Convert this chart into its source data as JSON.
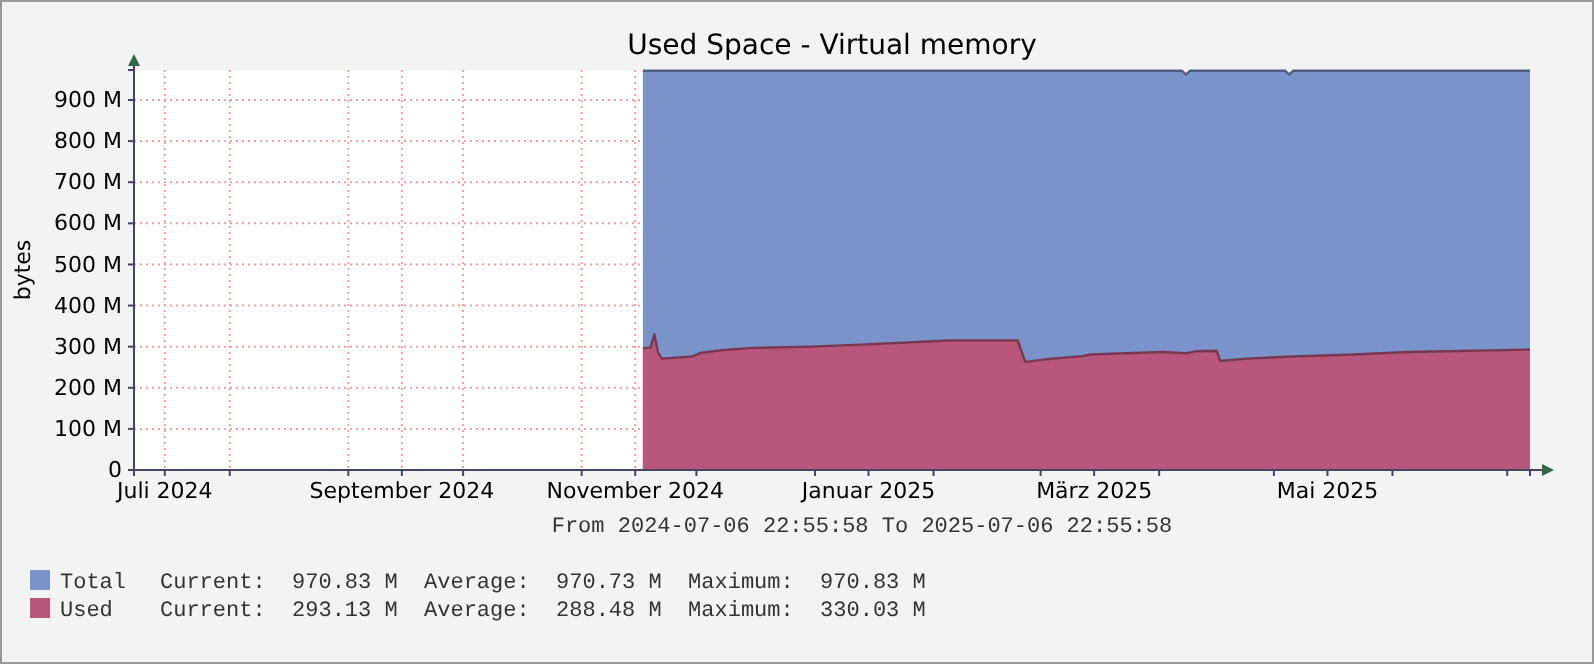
{
  "chart_data": {
    "type": "area",
    "title": "Used Space - Virtual memory",
    "ylabel": "bytes",
    "xlim": [
      "2024-07-06T22:55",
      "2025-07-06T22:55"
    ],
    "xticks": [
      {
        "value": "2024-07-15",
        "label": "Juli 2024"
      },
      {
        "value": "2024-08-01",
        "label": null
      },
      {
        "value": "2024-09-01",
        "label": null
      },
      {
        "value": "2024-09-15",
        "label": "September 2024"
      },
      {
        "value": "2024-10-01",
        "label": null
      },
      {
        "value": "2024-11-01",
        "label": null
      },
      {
        "value": "2024-11-15",
        "label": "November 2024"
      },
      {
        "value": "2024-12-01",
        "label": null
      },
      {
        "value": "2025-01-01",
        "label": null
      },
      {
        "value": "2025-01-15",
        "label": "Januar 2025"
      },
      {
        "value": "2025-02-01",
        "label": null
      },
      {
        "value": "2025-03-01",
        "label": null
      },
      {
        "value": "2025-03-15",
        "label": "März 2025"
      },
      {
        "value": "2025-04-01",
        "label": null
      },
      {
        "value": "2025-05-01",
        "label": null
      },
      {
        "value": "2025-05-15",
        "label": "Mai 2025"
      },
      {
        "value": "2025-06-01",
        "label": null
      },
      {
        "value": "2025-07-01",
        "label": null
      }
    ],
    "ylim": [
      0,
      973
    ],
    "yticks": [
      0,
      {
        "value": 100,
        "label": "100 M"
      },
      {
        "value": 200,
        "label": "200 M"
      },
      {
        "value": 300,
        "label": "300 M"
      },
      {
        "value": 400,
        "label": "400 M"
      },
      {
        "value": 500,
        "label": "500 M"
      },
      {
        "value": 600,
        "label": "600 M"
      },
      {
        "value": 700,
        "label": "700 M"
      },
      {
        "value": 800,
        "label": "800 M"
      },
      {
        "value": 900,
        "label": "900 M"
      }
    ],
    "grid": true,
    "legend": "bottom",
    "series": [
      {
        "name": "Total",
        "color": "#7b93cb",
        "x": [
          "2024-11-17",
          "2025-04-07",
          "2025-04-08",
          "2025-04-09",
          "2025-05-04",
          "2025-05-05",
          "2025-05-06",
          "2025-07-06T22:55"
        ],
        "values": [
          971,
          971,
          962,
          971,
          971,
          962,
          971,
          971
        ]
      },
      {
        "name": "Used",
        "color": "#b8577b",
        "x": [
          "2024-11-17",
          "2024-11-19",
          "2024-11-20",
          "2024-11-21",
          "2024-11-22",
          "2024-11-30",
          "2024-12-02",
          "2024-12-08",
          "2024-12-16",
          "2024-12-31",
          "2025-01-13",
          "2025-01-25",
          "2025-02-05",
          "2025-02-23",
          "2025-02-25",
          "2025-03-04",
          "2025-03-12",
          "2025-03-14",
          "2025-04-02",
          "2025-04-08",
          "2025-04-11",
          "2025-04-16",
          "2025-04-17",
          "2025-04-24",
          "2025-05-06",
          "2025-05-22",
          "2025-06-05",
          "2025-06-22",
          "2025-07-06T22:55"
        ],
        "values": [
          297,
          297,
          330,
          285,
          271,
          276,
          285,
          292,
          297,
          300,
          305,
          310,
          315,
          315,
          263,
          271,
          277,
          281,
          287,
          284,
          289,
          290,
          265,
          271,
          276,
          281,
          287,
          290,
          293
        ]
      }
    ],
    "annotations": [
      "From 2024-07-06 22:55:58 To 2025-07-06 22:55:58",
      "Current:  970.83 M  Average:  970.73 M  Maximum:  970.83 M",
      "Current:  293.13 M  Average:  288.48 M  Maximum:  330.03 M"
    ]
  }
}
